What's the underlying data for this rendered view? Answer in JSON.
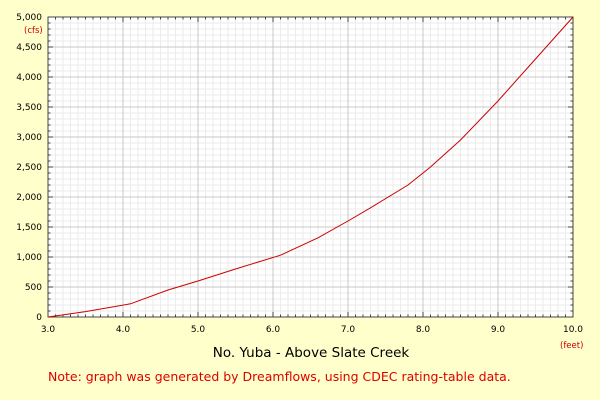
{
  "chart_data": {
    "type": "line",
    "title": "No. Yuba - Above Slate Creek",
    "note": "Note: graph was generated by Dreamflows, using CDEC rating-table data.",
    "x_unit": "(feet)",
    "y_unit": "(cfs)",
    "xlim": [
      3.0,
      10.0
    ],
    "ylim": [
      0,
      5000
    ],
    "x_ticks": [
      "3.0",
      "4.0",
      "5.0",
      "6.0",
      "7.0",
      "8.0",
      "9.0",
      "10.0"
    ],
    "y_ticks": [
      "0",
      "500",
      "1,000",
      "1,500",
      "2,000",
      "2,500",
      "3,000",
      "3,500",
      "4,000",
      "4,500",
      "5,000"
    ],
    "grid": true,
    "line_color": "#cc0000",
    "series": [
      {
        "x": [
          3.0,
          3.5,
          4.1,
          4.6,
          5.0,
          5.5,
          6.1,
          6.6,
          7.0,
          7.3,
          7.8,
          8.1,
          8.5,
          9.0,
          9.5,
          10.0
        ],
        "y": [
          0,
          90,
          220,
          450,
          600,
          800,
          1030,
          1320,
          1600,
          1820,
          2200,
          2500,
          2950,
          3600,
          4300,
          5000
        ]
      }
    ]
  }
}
